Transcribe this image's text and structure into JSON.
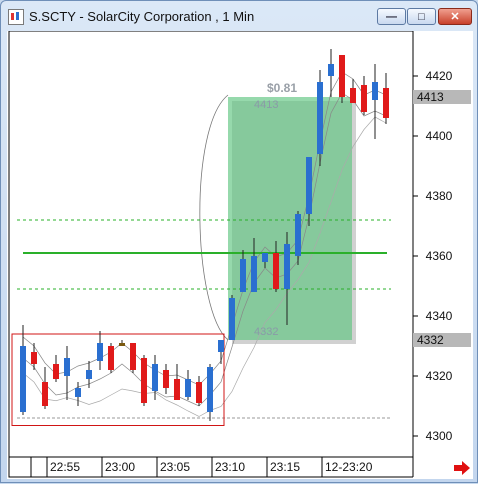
{
  "window": {
    "title": "S.SCTY - SolarCity Corporation , 1 Min",
    "icons": [
      "chart-app-icon",
      "minimize-icon",
      "maximize-icon",
      "close-icon"
    ]
  },
  "colors": {
    "up_candle": "#2a6fd0",
    "down_candle": "#e01a1a",
    "flat_candle": "#7a5a10",
    "green_box": "#5ec47f",
    "support_line": "#2ab02a",
    "red_box": "#d01515"
  },
  "chart_data": {
    "type": "candlestick",
    "x_ticks": [
      "22:55",
      "23:00",
      "23:05",
      "23:10",
      "23:15",
      "12-23:20"
    ],
    "y_ticks": [
      4300,
      4320,
      4340,
      4360,
      4380,
      4400,
      4420
    ],
    "ylim": [
      4293,
      4435
    ],
    "price_labels": {
      "current": "4413",
      "entry": "4332"
    },
    "annotations": {
      "gain": "$0.81",
      "box_top": "4413",
      "box_bottom": "4332"
    },
    "horizontal_lines": {
      "solid": 4361,
      "dashed_upper": 4372,
      "dashed_lower": 4349,
      "dashed_base": 4306
    },
    "candles": [
      {
        "o": 4308,
        "h": 4337,
        "l": 4307,
        "c": 4330
      },
      {
        "o": 4328,
        "h": 4331,
        "l": 4322,
        "c": 4324
      },
      {
        "o": 4318,
        "h": 4323,
        "l": 4309,
        "c": 4310
      },
      {
        "o": 4324,
        "h": 4327,
        "l": 4318,
        "c": 4319
      },
      {
        "o": 4320,
        "h": 4330,
        "l": 4312,
        "c": 4326
      },
      {
        "o": 4313,
        "h": 4318,
        "l": 4310,
        "c": 4316
      },
      {
        "o": 4319,
        "h": 4325,
        "l": 4316,
        "c": 4322
      },
      {
        "o": 4325,
        "h": 4335,
        "l": 4322,
        "c": 4331
      },
      {
        "o": 4330,
        "h": 4331,
        "l": 4321,
        "c": 4322
      },
      {
        "o": 4330,
        "h": 4332,
        "l": 4330,
        "c": 4331
      },
      {
        "o": 4331,
        "h": 4331,
        "l": 4321,
        "c": 4322
      },
      {
        "o": 4326,
        "h": 4327,
        "l": 4310,
        "c": 4311
      },
      {
        "o": 4315,
        "h": 4327,
        "l": 4312,
        "c": 4324
      },
      {
        "o": 4322,
        "h": 4324,
        "l": 4314,
        "c": 4316
      },
      {
        "o": 4319,
        "h": 4324,
        "l": 4312,
        "c": 4312
      },
      {
        "o": 4313,
        "h": 4322,
        "l": 4312,
        "c": 4319
      },
      {
        "o": 4318,
        "h": 4320,
        "l": 4310,
        "c": 4311
      },
      {
        "o": 4308,
        "h": 4324,
        "l": 4305,
        "c": 4323
      },
      {
        "o": 4328,
        "h": 4332,
        "l": 4324,
        "c": 4332
      },
      {
        "o": 4332,
        "h": 4347,
        "l": 4332,
        "c": 4346
      },
      {
        "o": 4348,
        "h": 4362,
        "l": 4348,
        "c": 4359
      },
      {
        "o": 4348,
        "h": 4366,
        "l": 4348,
        "c": 4360
      },
      {
        "o": 4358,
        "h": 4361,
        "l": 4356,
        "c": 4361
      },
      {
        "o": 4361,
        "h": 4365,
        "l": 4348,
        "c": 4349
      },
      {
        "o": 4349,
        "h": 4368,
        "l": 4337,
        "c": 4364
      },
      {
        "o": 4360,
        "h": 4375,
        "l": 4357,
        "c": 4374
      },
      {
        "o": 4374,
        "h": 4393,
        "l": 4370,
        "c": 4393
      },
      {
        "o": 4394,
        "h": 4422,
        "l": 4390,
        "c": 4418
      },
      {
        "o": 4420,
        "h": 4429,
        "l": 4413,
        "c": 4424
      },
      {
        "o": 4427,
        "h": 4427,
        "l": 4411,
        "c": 4413
      },
      {
        "o": 4416,
        "h": 4419,
        "l": 4411,
        "c": 4411
      },
      {
        "o": 4417,
        "h": 4420,
        "l": 4407,
        "c": 4408
      },
      {
        "o": 4412,
        "h": 4424,
        "l": 4399,
        "c": 4418
      },
      {
        "o": 4416,
        "h": 4421,
        "l": 4404,
        "c": 4406
      }
    ]
  }
}
